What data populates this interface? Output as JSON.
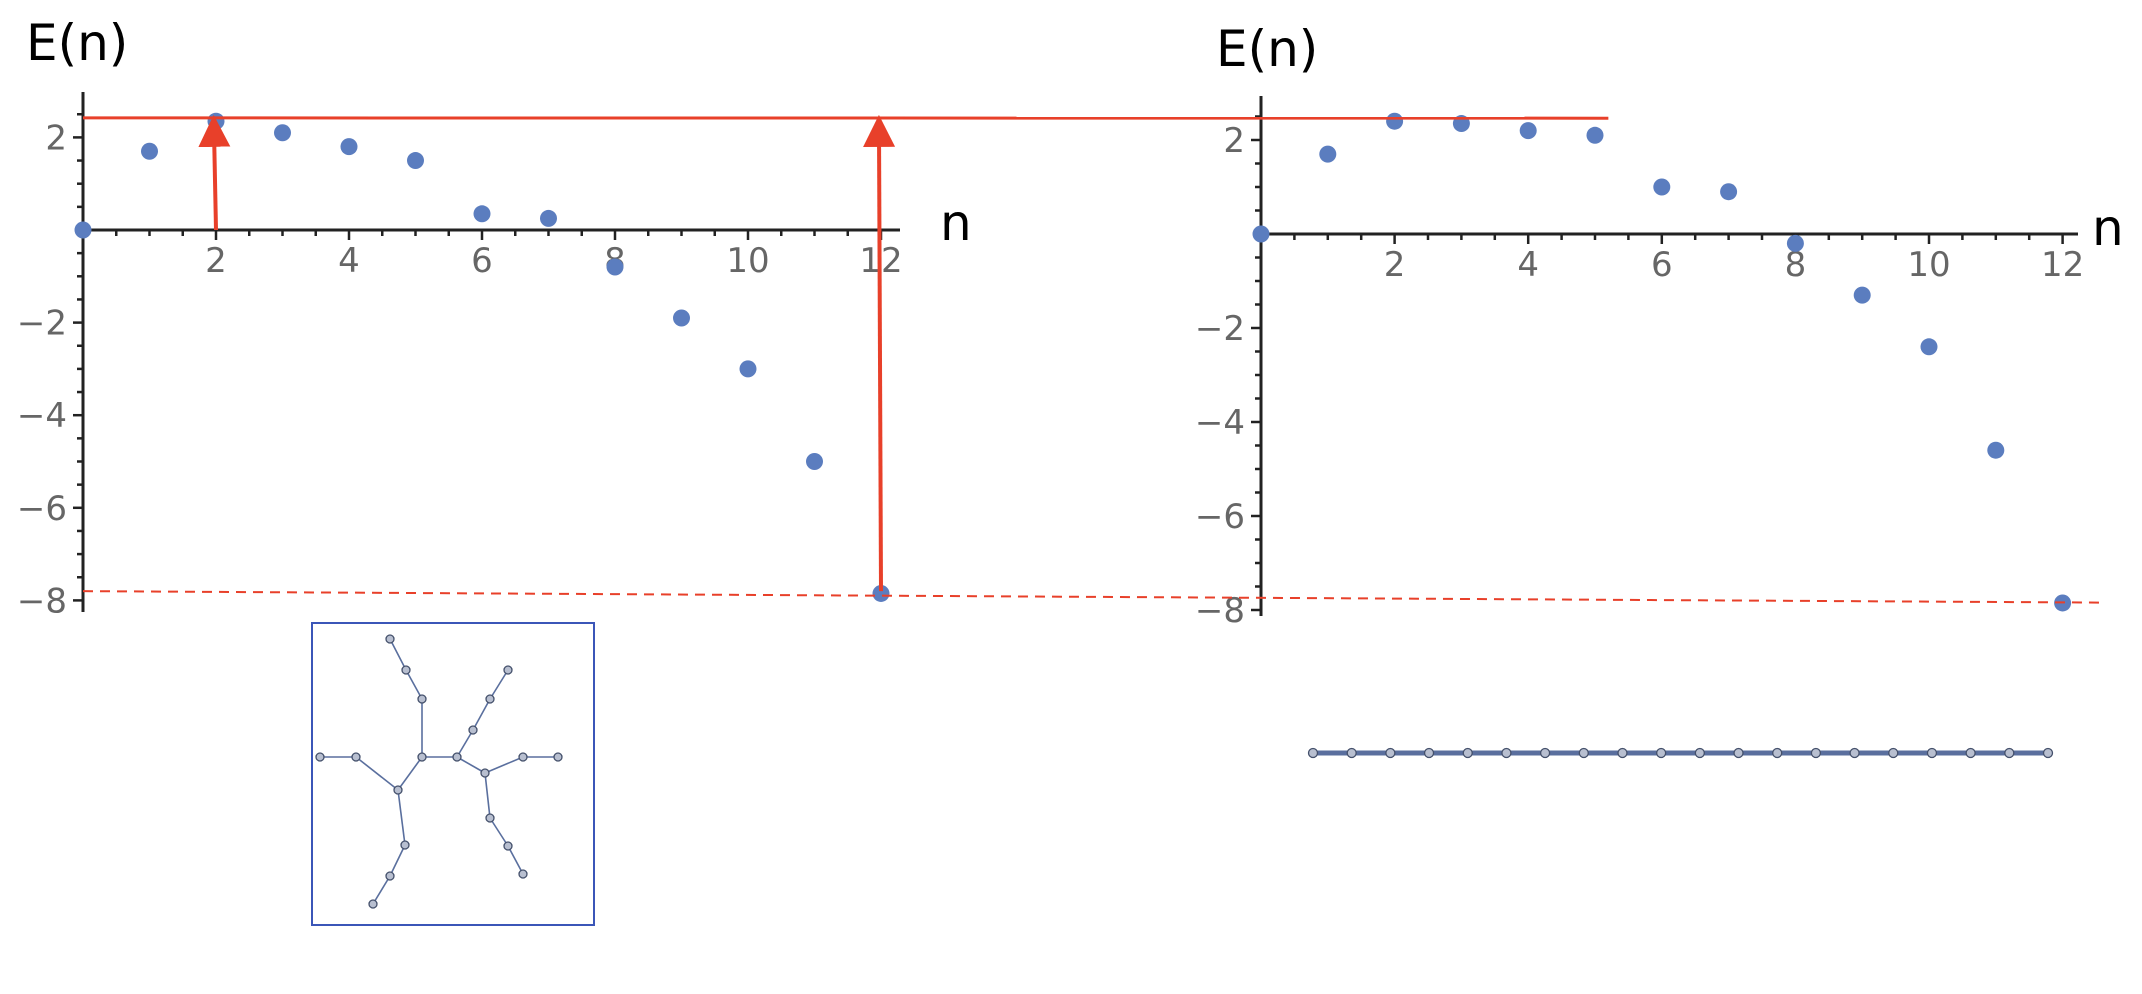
{
  "colors": {
    "points": "#5b7dbf",
    "reference_lines": "#e8402a",
    "axes": "#222222",
    "tick_labels": "#666666",
    "graph_frame": "#3b56b8",
    "graph_edges": "#5a6f9e"
  },
  "chart_data": [
    {
      "type": "scatter",
      "title": "",
      "xlabel": "n",
      "ylabel": "E(n)",
      "xlim": [
        0,
        12.3
      ],
      "ylim": [
        -8.2,
        2.6
      ],
      "xticks": [
        2,
        4,
        6,
        8,
        10,
        12
      ],
      "yticks": [
        -8,
        -6,
        -4,
        -2,
        2
      ],
      "x": [
        0,
        1,
        2,
        3,
        4,
        5,
        6,
        7,
        8,
        9,
        10,
        11,
        12
      ],
      "y": [
        0,
        1.7,
        2.35,
        2.1,
        1.8,
        1.5,
        0.35,
        0.25,
        -0.8,
        -1.9,
        -3.0,
        -5.0,
        -7.85
      ],
      "reference_lines": [
        {
          "style": "solid",
          "y": 2.4
        },
        {
          "style": "dashed",
          "y": -7.8
        }
      ],
      "arrows": [
        {
          "x": 2,
          "from_y": 0,
          "to_y": 2.4
        },
        {
          "x": 12,
          "from_y": -7.8,
          "to_y": 2.4
        }
      ],
      "inset": "branched-tree-graph"
    },
    {
      "type": "scatter",
      "title": "",
      "xlabel": "n",
      "ylabel": "E(n)",
      "xlim": [
        0,
        12.3
      ],
      "ylim": [
        -8.2,
        2.6
      ],
      "xticks": [
        2,
        4,
        6,
        8,
        10,
        12
      ],
      "yticks": [
        -8,
        -6,
        -4,
        -2,
        2
      ],
      "x": [
        0,
        1,
        2,
        3,
        4,
        5,
        6,
        7,
        8,
        9,
        10,
        11,
        12
      ],
      "y": [
        0,
        1.7,
        2.4,
        2.35,
        2.2,
        2.1,
        1.0,
        0.9,
        -0.2,
        -1.3,
        -2.4,
        -4.6,
        -7.85
      ],
      "reference_lines": [
        {
          "style": "dashed",
          "y": -7.8
        }
      ],
      "inset": "path-graph"
    }
  ]
}
